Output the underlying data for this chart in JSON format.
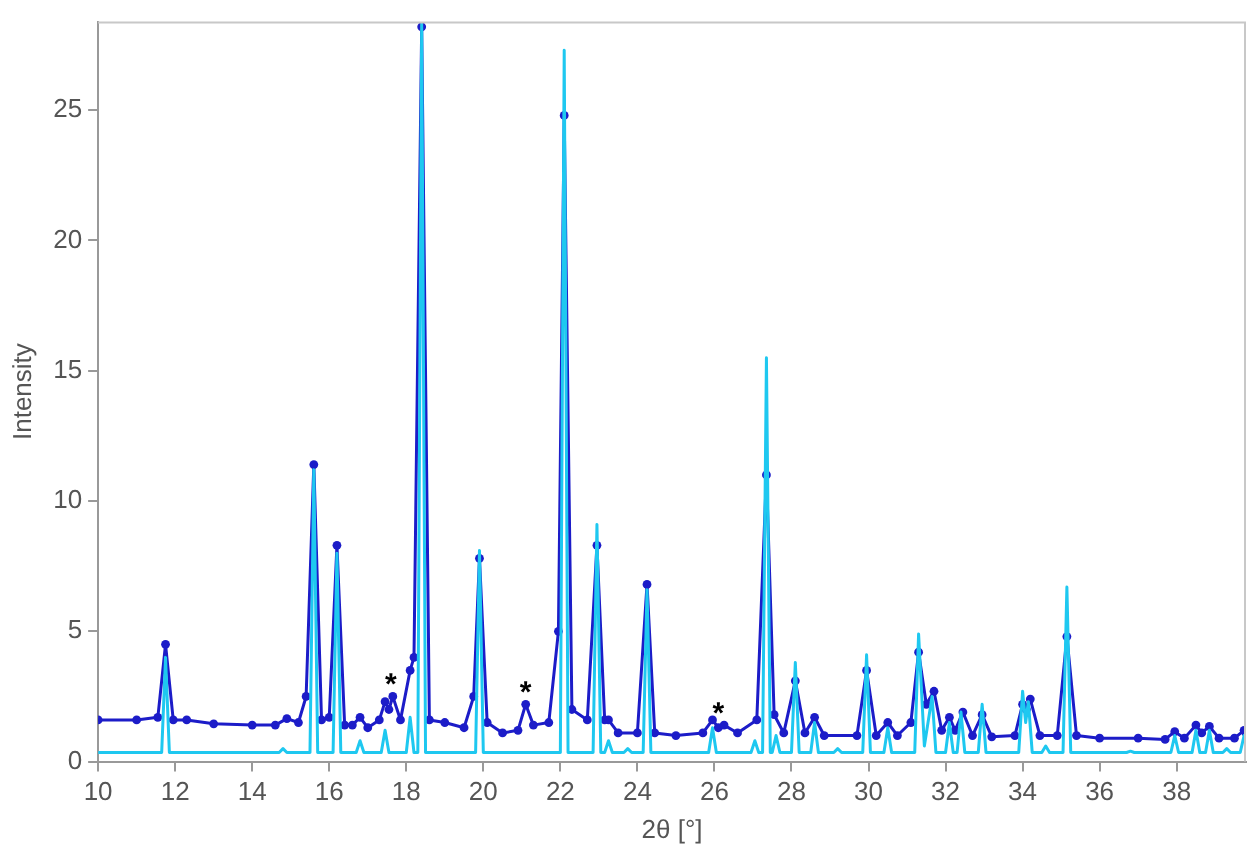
{
  "chart_data": {
    "type": "line",
    "xlabel": "2θ [°]",
    "ylabel": "Intensity",
    "xlim": [
      10,
      39.8
    ],
    "xticks": [
      10,
      12,
      14,
      16,
      18,
      20,
      22,
      24,
      26,
      28,
      30,
      32,
      34,
      36,
      38
    ],
    "ylim": [
      0,
      28.4
    ],
    "yticks": [
      0,
      5,
      10,
      15,
      20,
      25
    ],
    "grid": false,
    "legend": false,
    "line_style": "solid",
    "series": [
      {
        "color": "#1ec8f0",
        "marker": "none",
        "x": [
          10,
          11.65,
          11.75,
          11.85,
          14.7,
          14.8,
          14.9,
          15.5,
          15.6,
          15.7,
          16.1,
          16.2,
          16.3,
          16.7,
          16.8,
          16.9,
          17.35,
          17.45,
          17.55,
          18.0,
          18.1,
          18.2,
          18.3,
          18.4,
          18.5,
          19.8,
          19.9,
          20.0,
          22.0,
          22.1,
          22.2,
          22.85,
          22.95,
          23.05,
          23.15,
          23.25,
          23.35,
          23.65,
          23.75,
          23.85,
          24.15,
          24.25,
          24.35,
          25.85,
          25.95,
          26.05,
          26.95,
          27.05,
          27.15,
          27.25,
          27.35,
          27.45,
          27.5,
          27.6,
          27.7,
          28.0,
          28.1,
          28.2,
          28.5,
          28.6,
          28.7,
          29.1,
          29.2,
          29.3,
          29.85,
          29.95,
          30.05,
          30.4,
          30.5,
          30.6,
          31.2,
          31.3,
          31.45,
          31.65,
          31.75,
          32.0,
          32.1,
          32.2,
          32.3,
          32.4,
          32.5,
          32.85,
          32.95,
          33.05,
          33.9,
          34.0,
          34.08,
          34.15,
          34.25,
          34.5,
          34.6,
          34.7,
          35.05,
          35.15,
          35.25,
          36.7,
          36.8,
          36.9,
          37.85,
          37.95,
          38.05,
          38.4,
          38.5,
          38.6,
          38.75,
          38.85,
          38.95,
          39.2,
          39.3,
          39.4,
          39.65,
          39.75,
          39.8
        ],
        "values": [
          0.35,
          0.35,
          4.0,
          0.35,
          0.35,
          0.5,
          0.35,
          0.35,
          11.2,
          0.35,
          0.35,
          8.0,
          0.35,
          0.35,
          0.8,
          0.35,
          0.35,
          1.2,
          0.35,
          0.35,
          1.7,
          0.35,
          0.35,
          28.3,
          0.35,
          0.35,
          8.1,
          0.35,
          0.35,
          27.3,
          0.35,
          0.35,
          9.1,
          0.35,
          0.35,
          0.8,
          0.35,
          0.35,
          0.5,
          0.35,
          0.35,
          6.6,
          0.35,
          0.35,
          1.3,
          0.35,
          0.35,
          0.8,
          0.35,
          0.35,
          15.5,
          0.35,
          0.35,
          1.0,
          0.35,
          0.35,
          3.8,
          0.35,
          0.35,
          1.5,
          0.35,
          0.35,
          0.5,
          0.35,
          0.35,
          4.1,
          0.35,
          0.35,
          1.3,
          0.35,
          0.35,
          4.9,
          0.6,
          2.5,
          0.35,
          0.35,
          1.5,
          0.35,
          0.35,
          1.9,
          0.35,
          0.35,
          2.2,
          0.35,
          0.35,
          2.7,
          1.5,
          2.3,
          0.35,
          0.35,
          0.6,
          0.35,
          0.35,
          6.7,
          0.35,
          0.35,
          0.4,
          0.35,
          0.35,
          1.0,
          0.35,
          0.35,
          1.2,
          0.35,
          0.35,
          1.2,
          0.35,
          0.35,
          0.5,
          0.35,
          0.35,
          1.0,
          0.6
        ]
      },
      {
        "color": "#1c1cc8",
        "marker": "circle",
        "x": [
          10,
          11.0,
          11.55,
          11.75,
          11.95,
          12.3,
          13,
          14,
          14.6,
          14.9,
          15.2,
          15.4,
          15.6,
          15.8,
          16.0,
          16.2,
          16.4,
          16.6,
          16.8,
          17.0,
          17.3,
          17.45,
          17.55,
          17.65,
          17.85,
          18.1,
          18.2,
          18.4,
          18.6,
          19.0,
          19.5,
          19.75,
          19.9,
          20.1,
          20.5,
          20.9,
          21.1,
          21.3,
          21.7,
          21.95,
          22.1,
          22.3,
          22.7,
          22.95,
          23.15,
          23.25,
          23.5,
          24.0,
          24.25,
          24.45,
          25.0,
          25.7,
          25.95,
          26.1,
          26.25,
          26.6,
          27.1,
          27.35,
          27.55,
          27.8,
          28.1,
          28.35,
          28.6,
          28.85,
          29.7,
          29.95,
          30.2,
          30.5,
          30.75,
          31.1,
          31.3,
          31.5,
          31.7,
          31.9,
          32.1,
          32.25,
          32.45,
          32.7,
          32.95,
          33.2,
          33.8,
          34.0,
          34.1,
          34.2,
          34.45,
          34.9,
          35.15,
          35.4,
          36,
          37,
          37.7,
          37.95,
          38.2,
          38.5,
          38.65,
          38.85,
          39.1,
          39.5,
          39.75,
          39.8
        ],
        "values": [
          1.6,
          1.6,
          1.7,
          4.5,
          1.6,
          1.6,
          1.45,
          1.4,
          1.4,
          1.65,
          1.5,
          2.5,
          11.4,
          1.6,
          1.7,
          8.3,
          1.4,
          1.4,
          1.7,
          1.3,
          1.6,
          2.3,
          2.0,
          2.5,
          1.6,
          3.5,
          4,
          28.2,
          1.6,
          1.5,
          1.3,
          2.5,
          7.8,
          1.5,
          1.1,
          1.2,
          2.2,
          1.4,
          1.5,
          5,
          24.8,
          2.0,
          1.6,
          8.3,
          1.6,
          1.6,
          1.1,
          1.1,
          6.8,
          1.1,
          1.0,
          1.1,
          1.6,
          1.3,
          1.4,
          1.1,
          1.6,
          11.0,
          1.8,
          1.1,
          3.1,
          1.1,
          1.7,
          1.0,
          1.0,
          3.5,
          1.0,
          1.5,
          1.0,
          1.5,
          4.2,
          2.2,
          2.7,
          1.2,
          1.7,
          1.2,
          1.9,
          1.0,
          1.8,
          0.95,
          1.0,
          2.2,
          2.0,
          2.4,
          1.0,
          1.0,
          4.8,
          1.0,
          0.9,
          0.9,
          0.85,
          1.15,
          0.9,
          1.4,
          1.1,
          1.35,
          0.9,
          0.9,
          1.2,
          1.1
        ]
      }
    ],
    "annotations": [
      {
        "text": "*",
        "x": 17.6,
        "y": 2.9
      },
      {
        "text": "*",
        "x": 21.1,
        "y": 2.6
      },
      {
        "text": "*",
        "x": 26.1,
        "y": 1.8
      }
    ]
  }
}
